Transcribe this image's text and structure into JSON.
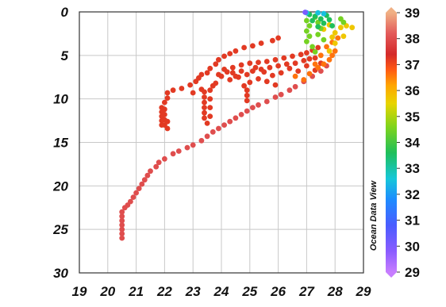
{
  "chart_data": {
    "type": "scatter",
    "title": "",
    "xlabel": "",
    "ylabel": "",
    "xlim": [
      19,
      29
    ],
    "ylim": [
      0,
      30
    ],
    "y_inverted": true,
    "x_ticks": [
      "19",
      "20",
      "21",
      "22",
      "23",
      "24",
      "25",
      "26",
      "27",
      "28",
      "29"
    ],
    "y_ticks": [
      "0",
      "5",
      "10",
      "15",
      "20",
      "25",
      "30"
    ],
    "grid": true,
    "colorbar": {
      "range": [
        29,
        39
      ],
      "ticks": [
        "29",
        "30",
        "31",
        "32",
        "33",
        "34",
        "35",
        "36",
        "37",
        "38",
        "39"
      ],
      "placement": "right",
      "colors": [
        "#c77dff",
        "#8a5cff",
        "#4a5cff",
        "#1e8cff",
        "#16c7d9",
        "#1fbf5a",
        "#7fd41c",
        "#e8d400",
        "#ffa500",
        "#ff5a14",
        "#d42a2a",
        "#e35a5a",
        "#f0b084"
      ]
    },
    "watermark": "Ocean Data View",
    "series": [
      {
        "points": [
          [
            20.5,
            26.0
          ],
          [
            20.5,
            25.5
          ],
          [
            20.5,
            25.0
          ],
          [
            20.5,
            24.5
          ],
          [
            20.5,
            24.0
          ],
          [
            20.5,
            23.5
          ],
          [
            20.5,
            23.0
          ],
          [
            20.6,
            22.5
          ],
          [
            20.7,
            22.2
          ],
          [
            20.8,
            21.8
          ],
          [
            20.9,
            21.3
          ],
          [
            21.0,
            20.8
          ],
          [
            21.1,
            20.3
          ],
          [
            21.2,
            19.8
          ],
          [
            21.3,
            19.3
          ],
          [
            21.4,
            18.8
          ],
          [
            21.5,
            18.3
          ],
          [
            21.7,
            17.8
          ],
          [
            21.8,
            17.3
          ],
          [
            22.0,
            16.9
          ],
          [
            22.3,
            16.3
          ],
          [
            22.5,
            16.0
          ],
          [
            22.8,
            15.6
          ],
          [
            23.0,
            15.3
          ],
          [
            23.3,
            14.8
          ],
          [
            23.5,
            14.3
          ],
          [
            23.7,
            13.8
          ],
          [
            23.9,
            13.4
          ],
          [
            24.1,
            13.0
          ],
          [
            24.3,
            12.6
          ],
          [
            24.5,
            12.2
          ],
          [
            24.7,
            11.8
          ],
          [
            24.9,
            11.4
          ],
          [
            25.1,
            11.0
          ],
          [
            25.3,
            10.7
          ],
          [
            25.6,
            10.3
          ],
          [
            25.9,
            9.8
          ],
          [
            26.1,
            9.5
          ],
          [
            26.4,
            9.0
          ],
          [
            26.6,
            8.6
          ],
          [
            26.9,
            8.0
          ],
          [
            27.2,
            7.4
          ],
          [
            27.5,
            6.8
          ],
          [
            27.7,
            6.2
          ]
        ],
        "value": 38.0
      },
      {
        "points": [
          [
            21.9,
            11.0
          ],
          [
            21.9,
            11.5
          ],
          [
            21.9,
            12.0
          ],
          [
            21.9,
            12.5
          ],
          [
            21.9,
            13.0
          ],
          [
            22.0,
            11.2
          ],
          [
            22.0,
            11.8
          ],
          [
            22.0,
            12.4
          ],
          [
            22.0,
            13.0
          ],
          [
            22.1,
            12.6
          ],
          [
            22.1,
            13.4
          ],
          [
            22.0,
            10.4
          ],
          [
            22.1,
            9.9
          ],
          [
            22.1,
            9.3
          ],
          [
            22.3,
            9.0
          ],
          [
            22.6,
            8.8
          ],
          [
            22.9,
            8.4
          ],
          [
            23.1,
            8.0
          ],
          [
            23.2,
            7.6
          ],
          [
            23.3,
            7.2
          ],
          [
            23.5,
            7.0
          ],
          [
            23.6,
            6.5
          ],
          [
            23.8,
            6.0
          ],
          [
            23.9,
            5.5
          ],
          [
            24.1,
            5.1
          ],
          [
            24.3,
            4.8
          ],
          [
            24.5,
            4.5
          ],
          [
            24.8,
            4.1
          ],
          [
            25.1,
            3.9
          ],
          [
            25.4,
            3.6
          ],
          [
            25.8,
            3.3
          ],
          [
            26.0,
            3.0
          ],
          [
            23.4,
            9.2
          ],
          [
            23.4,
            9.8
          ],
          [
            23.4,
            10.4
          ],
          [
            23.4,
            11.0
          ],
          [
            23.4,
            11.6
          ],
          [
            23.4,
            12.2
          ],
          [
            23.5,
            12.8
          ],
          [
            23.6,
            9.0
          ],
          [
            23.6,
            10.0
          ],
          [
            23.6,
            11.0
          ],
          [
            23.6,
            12.0
          ],
          [
            23.7,
            8.5
          ],
          [
            24.0,
            7.4
          ],
          [
            24.3,
            7.8
          ],
          [
            24.6,
            7.5
          ],
          [
            24.9,
            7.2
          ],
          [
            25.1,
            6.8
          ],
          [
            25.4,
            6.6
          ],
          [
            25.7,
            6.4
          ],
          [
            26.0,
            6.2
          ],
          [
            26.3,
            6.0
          ],
          [
            26.6,
            5.9
          ],
          [
            26.9,
            5.6
          ],
          [
            27.1,
            5.4
          ],
          [
            27.3,
            5.3
          ],
          [
            24.8,
            8.5
          ],
          [
            24.9,
            9.0
          ],
          [
            24.9,
            9.6
          ],
          [
            24.9,
            10.2
          ],
          [
            25.0,
            8.1
          ],
          [
            23.0,
            9.3
          ],
          [
            23.3,
            8.9
          ],
          [
            23.8,
            8.2
          ],
          [
            24.2,
            6.9
          ],
          [
            24.4,
            6.4
          ],
          [
            24.7,
            6.1
          ],
          [
            25.0,
            5.9
          ],
          [
            25.3,
            5.8
          ],
          [
            25.6,
            5.7
          ],
          [
            25.9,
            5.5
          ],
          [
            26.2,
            5.3
          ],
          [
            26.5,
            5.1
          ],
          [
            26.8,
            4.9
          ],
          [
            27.0,
            4.7
          ],
          [
            27.2,
            4.4
          ],
          [
            27.4,
            4.1
          ],
          [
            24.4,
            7.0
          ],
          [
            24.7,
            6.8
          ],
          [
            25.2,
            6.4
          ],
          [
            25.5,
            6.9
          ],
          [
            25.8,
            7.3
          ],
          [
            26.1,
            7.0
          ],
          [
            26.4,
            6.5
          ],
          [
            26.7,
            6.8
          ],
          [
            27.0,
            6.2
          ],
          [
            27.3,
            6.7
          ],
          [
            27.5,
            5.9
          ],
          [
            23.9,
            7.2
          ],
          [
            24.1,
            6.6
          ],
          [
            24.5,
            7.4
          ],
          [
            25.3,
            7.7
          ],
          [
            25.6,
            8.0
          ],
          [
            25.9,
            8.4
          ]
        ],
        "value": 37.2
      },
      {
        "points": [
          [
            26.6,
            7.4
          ],
          [
            26.9,
            7.8
          ],
          [
            27.1,
            7.1
          ],
          [
            27.4,
            6.4
          ],
          [
            27.6,
            6.0
          ],
          [
            27.8,
            5.5
          ],
          [
            27.9,
            5.0
          ],
          [
            28.0,
            4.5
          ],
          [
            27.7,
            4.0
          ],
          [
            27.9,
            3.5
          ],
          [
            28.1,
            3.0
          ],
          [
            27.5,
            5.0
          ],
          [
            27.3,
            6.0
          ]
        ],
        "value": 36.6
      },
      {
        "points": [
          [
            27.6,
            2.0
          ],
          [
            27.8,
            1.5
          ],
          [
            28.0,
            2.4
          ],
          [
            28.2,
            1.8
          ],
          [
            28.3,
            2.8
          ],
          [
            28.0,
            3.6
          ],
          [
            27.8,
            4.5
          ],
          [
            28.4,
            1.6
          ],
          [
            28.6,
            1.8
          ],
          [
            27.9,
            2.9
          ]
        ],
        "value": 35.7
      },
      {
        "points": [
          [
            27.0,
            1.0
          ],
          [
            27.1,
            1.6
          ],
          [
            27.0,
            2.2
          ],
          [
            27.1,
            2.8
          ],
          [
            27.0,
            3.4
          ],
          [
            27.2,
            4.0
          ],
          [
            27.3,
            0.6
          ],
          [
            27.4,
            1.2
          ],
          [
            27.5,
            1.9
          ],
          [
            27.4,
            2.6
          ],
          [
            27.6,
            3.2
          ],
          [
            27.3,
            4.6
          ],
          [
            28.2,
            0.8
          ],
          [
            28.3,
            1.2
          ]
        ],
        "value": 34.5
      },
      {
        "points": [
          [
            27.1,
            0.3
          ],
          [
            27.3,
            0.5
          ],
          [
            27.5,
            0.8
          ],
          [
            27.7,
            0.4
          ],
          [
            27.8,
            0.9
          ],
          [
            27.6,
            1.3
          ],
          [
            27.9,
            1.6
          ],
          [
            27.2,
            1.0
          ],
          [
            27.4,
            1.7
          ]
        ],
        "value": 33.6
      },
      {
        "points": [
          [
            27.0,
            0.1
          ],
          [
            27.4,
            0.1
          ],
          [
            27.6,
            0.2
          ]
        ],
        "value": 32.5
      },
      {
        "points": [
          [
            26.95,
            0.05
          ]
        ],
        "value": 30.0
      }
    ]
  }
}
